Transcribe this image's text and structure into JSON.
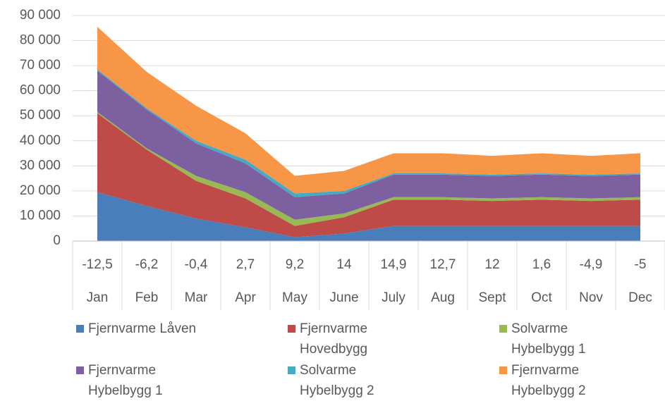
{
  "chart_data": {
    "type": "stacked_area",
    "categories": [
      "Jan",
      "Feb",
      "Mar",
      "Apr",
      "May",
      "June",
      "July",
      "Aug",
      "Sept",
      "Oct",
      "Nov",
      "Dec"
    ],
    "temperatures": [
      "-12,5",
      "-6,2",
      "-0,4",
      "2,7",
      "9,2",
      "14",
      "14,9",
      "12,7",
      "12",
      "1,6",
      "-4,9",
      "-5"
    ],
    "series": [
      {
        "name": "Fjernvarme Låven",
        "color": "#4a7ebb",
        "values": [
          19500,
          14000,
          9000,
          5500,
          1500,
          3000,
          6000,
          6000,
          6000,
          6000,
          6000,
          6000
        ]
      },
      {
        "name": "Fjernvarme Hovedbygg",
        "color": "#be4b48",
        "values": [
          31500,
          22500,
          15000,
          11500,
          4500,
          6500,
          10500,
          10500,
          10000,
          10500,
          10000,
          10500
        ]
      },
      {
        "name": "Solvarme Hybelbygg 1",
        "color": "#98b954",
        "values": [
          500,
          500,
          2000,
          2500,
          2500,
          1500,
          1000,
          1000,
          1000,
          1000,
          1000,
          1000
        ]
      },
      {
        "name": "Fjernvarme Hybelbygg 1",
        "color": "#7d60a0",
        "values": [
          16500,
          15500,
          13000,
          11500,
          9000,
          8000,
          9000,
          9000,
          9000,
          9000,
          9000,
          9000
        ]
      },
      {
        "name": "Solvarme Hybelbygg 2",
        "color": "#46aac5",
        "values": [
          500,
          500,
          1000,
          1500,
          1500,
          1000,
          500,
          500,
          500,
          500,
          500,
          500
        ]
      },
      {
        "name": "Fjernvarme Hybelbygg 2",
        "color": "#f79646",
        "values": [
          17000,
          14500,
          14000,
          10500,
          7000,
          8000,
          8000,
          8000,
          7500,
          8000,
          7500,
          8000
        ]
      }
    ],
    "ylim": [
      0,
      90000
    ],
    "yticks": [
      0,
      {
        "value": 10000,
        "label": "10 000"
      },
      {
        "value": 20000,
        "label": "20 000"
      },
      {
        "value": 30000,
        "label": "30 000"
      },
      {
        "value": 40000,
        "label": "40 000"
      },
      {
        "value": 50000,
        "label": "50 000"
      },
      {
        "value": 60000,
        "label": "60 000"
      },
      {
        "value": 70000,
        "label": "70 000"
      },
      {
        "value": 80000,
        "label": "80 000"
      },
      {
        "value": 90000,
        "label": "90 000"
      }
    ],
    "grid": true
  }
}
